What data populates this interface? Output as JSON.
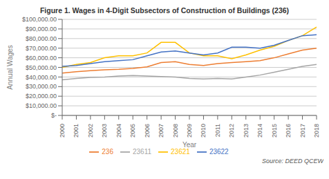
{
  "chart_data": {
    "type": "line",
    "title": "Figure 1. Wages in 4-Digit Subsectors of Construction of Buildings (236)",
    "xlabel": "Year",
    "ylabel": "Annual Wages",
    "annotation": "Source: DEED QCEW",
    "categories": [
      "2000",
      "2001",
      "2002",
      "2003",
      "2004",
      "2005",
      "2006",
      "2007",
      "2008",
      "2009",
      "2010",
      "2011",
      "2012",
      "2013",
      "2014",
      "2015",
      "2016",
      "2017",
      "2018"
    ],
    "series": [
      {
        "name": "236",
        "color": "#ED7D31",
        "values": [
          44000,
          45500,
          46500,
          47500,
          48000,
          49000,
          50500,
          55000,
          56000,
          53000,
          52000,
          54000,
          55000,
          56000,
          57000,
          60000,
          64000,
          68000,
          70000
        ]
      },
      {
        "name": "23611",
        "color": "#A5A5A5",
        "values": [
          37000,
          38500,
          39500,
          40000,
          41000,
          41500,
          41000,
          40500,
          40000,
          38500,
          38000,
          38500,
          38000,
          40000,
          42000,
          45000,
          48000,
          51000,
          53000
        ]
      },
      {
        "name": "23621",
        "color": "#FFC000",
        "values": [
          50000,
          53000,
          55000,
          60000,
          62000,
          62000,
          65000,
          76000,
          76000,
          65000,
          62000,
          62000,
          59000,
          63000,
          68000,
          72000,
          78000,
          83000,
          92000
        ]
      },
      {
        "name": "23622",
        "color": "#4472C4",
        "values": [
          51000,
          52000,
          54000,
          56000,
          57000,
          58000,
          62000,
          66000,
          67000,
          65000,
          63000,
          65000,
          71000,
          71000,
          70000,
          73000,
          78000,
          83000,
          84000
        ]
      }
    ],
    "ylim": [
      0,
      100000
    ],
    "yticks": [
      {
        "value": 0,
        "label": "$-"
      },
      {
        "value": 10000,
        "label": "$10,000.00"
      },
      {
        "value": 20000,
        "label": "$20,000.00"
      },
      {
        "value": 30000,
        "label": "$30,000.00"
      },
      {
        "value": 40000,
        "label": "$40,000.00"
      },
      {
        "value": 50000,
        "label": "$50,000.00"
      },
      {
        "value": 60000,
        "label": "$60,000.00"
      },
      {
        "value": 70000,
        "label": "$70,000.00"
      },
      {
        "value": 80000,
        "label": "$80,000.00"
      },
      {
        "value": 90000,
        "label": "$90,000.00"
      },
      {
        "value": 100000,
        "label": "$100,000.00"
      }
    ],
    "grid": true,
    "legend": "bottom"
  }
}
